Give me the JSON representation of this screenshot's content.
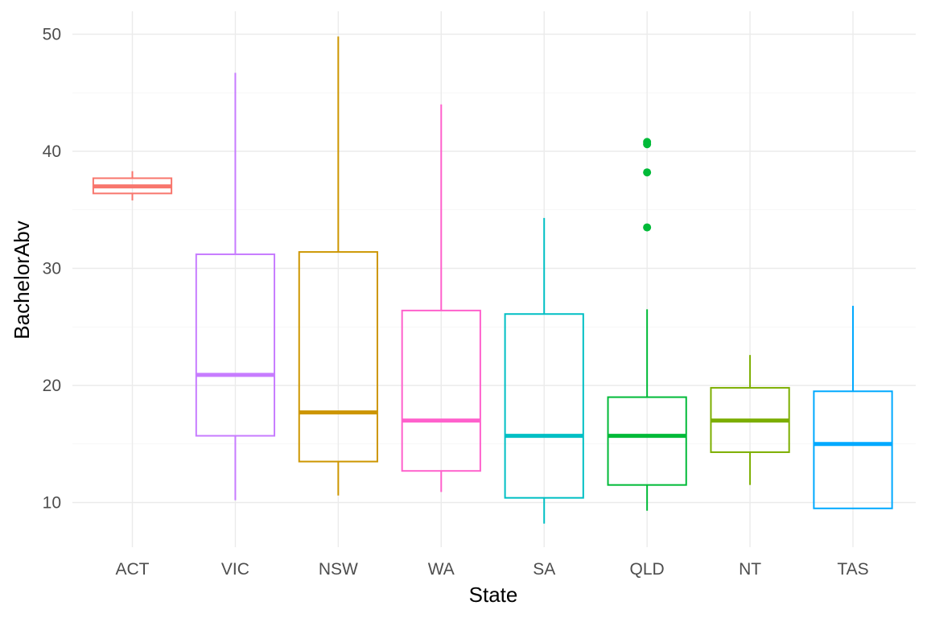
{
  "chart_data": {
    "type": "boxplot",
    "title": "",
    "xlabel": "State",
    "ylabel": "BachelorAbv",
    "ylim": [
      6.5,
      52.5
    ],
    "yticks": [
      10,
      20,
      30,
      40,
      50
    ],
    "grid": true,
    "legend": "none",
    "categories": [
      "ACT",
      "VIC",
      "NSW",
      "WA",
      "SA",
      "QLD",
      "NT",
      "TAS"
    ],
    "boxes": [
      {
        "category": "ACT",
        "color": "#F8766D",
        "whisker_low": 35.8,
        "q1": 36.4,
        "median": 37.0,
        "q3": 37.7,
        "whisker_high": 38.3,
        "outliers": []
      },
      {
        "category": "VIC",
        "color": "#C77CFF",
        "whisker_low": 10.2,
        "q1": 15.7,
        "median": 20.9,
        "q3": 31.2,
        "whisker_high": 46.7,
        "outliers": []
      },
      {
        "category": "NSW",
        "color": "#CD9600",
        "whisker_low": 10.6,
        "q1": 13.5,
        "median": 17.7,
        "q3": 31.4,
        "whisker_high": 49.8,
        "outliers": []
      },
      {
        "category": "WA",
        "color": "#FF61CC",
        "whisker_low": 10.9,
        "q1": 12.7,
        "median": 17.0,
        "q3": 26.4,
        "whisker_high": 44.0,
        "outliers": []
      },
      {
        "category": "SA",
        "color": "#00BFC4",
        "whisker_low": 8.2,
        "q1": 10.4,
        "median": 15.7,
        "q3": 26.1,
        "whisker_high": 34.3,
        "outliers": []
      },
      {
        "category": "QLD",
        "color": "#00BA38",
        "whisker_low": 9.3,
        "q1": 11.5,
        "median": 15.7,
        "q3": 19.0,
        "whisker_high": 26.5,
        "outliers": [
          33.5,
          38.2,
          40.6,
          40.8
        ]
      },
      {
        "category": "NT",
        "color": "#7CAE00",
        "whisker_low": 11.5,
        "q1": 14.3,
        "median": 17.0,
        "q3": 19.8,
        "whisker_high": 22.6,
        "outliers": []
      },
      {
        "category": "TAS",
        "color": "#00A9FF",
        "whisker_low": 9.5,
        "q1": 9.5,
        "median": 15.0,
        "q3": 19.5,
        "whisker_high": 26.8,
        "outliers": []
      }
    ]
  }
}
